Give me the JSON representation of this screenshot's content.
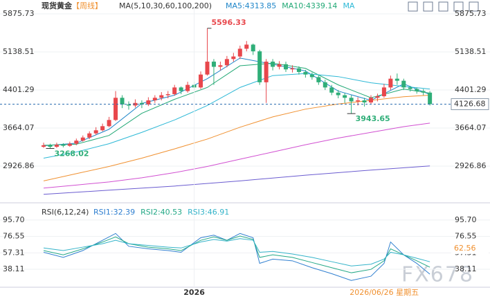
{
  "chart_data": [
    {
      "type": "candlestick",
      "title": "现货黄金",
      "period": "【周线】",
      "indicator": "MA(5,10,30,60,100,200)",
      "open": [
        3300,
        3330,
        3300,
        3340,
        3320,
        3360,
        3420,
        3480,
        3560,
        3620,
        3700,
        3820,
        4250,
        4120,
        4100,
        4150,
        4120,
        4200,
        4250,
        4300,
        4320,
        4450,
        4380,
        4500,
        4450,
        4700,
        4950,
        4850,
        4880,
        5000,
        5050,
        5200,
        5280,
        5150,
        4550,
        4950,
        4850,
        4900,
        4800,
        4820,
        4750,
        4700,
        4650,
        4550,
        4450,
        4350,
        4300,
        4250,
        4180,
        4200,
        4160,
        4250,
        4280,
        4450,
        4620,
        4580,
        4450,
        4420,
        4380,
        4350
      ],
      "high": [
        3380,
        3360,
        3380,
        3370,
        3400,
        3460,
        3520,
        3600,
        3680,
        3750,
        3880,
        4380,
        4300,
        4180,
        4220,
        4200,
        4260,
        4300,
        4360,
        4380,
        4500,
        4470,
        4560,
        4560,
        4760,
        5596.33,
        5000,
        4950,
        5060,
        5120,
        5260,
        5350,
        5300,
        5180,
        5000,
        5000,
        4960,
        4950,
        4880,
        4860,
        4790,
        4740,
        4690,
        4600,
        4500,
        4400,
        4340,
        4300,
        4260,
        4250,
        4300,
        4330,
        4520,
        4680,
        4720,
        4620,
        4480,
        4450,
        4420,
        4380
      ],
      "low": [
        3280,
        3268.02,
        3280,
        3290,
        3300,
        3330,
        3400,
        3450,
        3530,
        3600,
        3680,
        3800,
        4050,
        4020,
        4060,
        4050,
        4090,
        4150,
        4200,
        4240,
        4290,
        4320,
        4350,
        4400,
        4420,
        4680,
        4500,
        4780,
        4840,
        4950,
        5000,
        5150,
        5080,
        4500,
        4150,
        4780,
        4800,
        4750,
        4740,
        4700,
        4640,
        4600,
        4500,
        4400,
        4300,
        4240,
        4150,
        3943.65,
        4100,
        4080,
        4120,
        4180,
        4250,
        4400,
        4500,
        4400,
        4370,
        4330,
        4300,
        4100
      ],
      "close": [
        3330,
        3300,
        3340,
        3320,
        3360,
        3420,
        3480,
        3560,
        3620,
        3700,
        3820,
        4250,
        4120,
        4100,
        4150,
        4120,
        4200,
        4250,
        4300,
        4320,
        4450,
        4380,
        4500,
        4450,
        4700,
        4950,
        4850,
        4880,
        5000,
        5050,
        5200,
        5280,
        5150,
        4550,
        4950,
        4850,
        4900,
        4800,
        4820,
        4750,
        4700,
        4650,
        4550,
        4450,
        4350,
        4300,
        4250,
        4180,
        4200,
        4160,
        4250,
        4280,
        4450,
        4620,
        4580,
        4450,
        4420,
        4380,
        4350,
        4126.68
      ],
      "up_color": "#e8474c",
      "down_color": "#2fae78",
      "series": [
        {
          "name": "MA5:4313.85",
          "color": "#1f86c9",
          "x": [
            0,
            5,
            10,
            15,
            20,
            25,
            30,
            35,
            40,
            45,
            50,
            55,
            59
          ],
          "values": [
            3320,
            3370,
            3640,
            4140,
            4300,
            4620,
            5020,
            4900,
            4770,
            4380,
            4200,
            4520,
            4313.85
          ]
        },
        {
          "name": "MA10:4339.14",
          "color": "#21a875",
          "x": [
            0,
            5,
            10,
            15,
            20,
            25,
            30,
            35,
            40,
            45,
            50,
            55,
            59
          ],
          "values": [
            3330,
            3350,
            3520,
            3950,
            4220,
            4450,
            4870,
            4920,
            4820,
            4500,
            4250,
            4420,
            4339.14
          ]
        },
        {
          "name": "MA",
          "color": "#2cb8d6",
          "x": [
            0,
            5,
            10,
            15,
            20,
            25,
            30,
            35,
            40,
            45,
            50,
            55,
            59
          ],
          "values": [
            3080,
            3200,
            3360,
            3580,
            3820,
            4100,
            4450,
            4680,
            4720,
            4660,
            4540,
            4470,
            4420
          ]
        },
        {
          "color": "#f0902f",
          "x": [
            0,
            5,
            10,
            15,
            20,
            25,
            30,
            35,
            40,
            45,
            50,
            55,
            59
          ],
          "values": [
            2640,
            2780,
            2920,
            3080,
            3260,
            3450,
            3680,
            3880,
            4030,
            4130,
            4200,
            4270,
            4300
          ]
        },
        {
          "color": "#d14fd1",
          "x": [
            0,
            5,
            10,
            15,
            20,
            25,
            30,
            35,
            40,
            45,
            50,
            55,
            59
          ],
          "values": [
            2500,
            2560,
            2620,
            2700,
            2800,
            2920,
            3060,
            3200,
            3340,
            3470,
            3580,
            3690,
            3760
          ]
        },
        {
          "color": "#6a5bd0",
          "x": [
            0,
            10,
            20,
            30,
            40,
            50,
            59
          ],
          "values": [
            2380,
            2460,
            2540,
            2640,
            2750,
            2850,
            2930
          ]
        }
      ],
      "ylim": [
        2256,
        6010
      ],
      "yticks": [
        2926.86,
        3664.07,
        4401.29,
        5138.51,
        5875.73
      ],
      "last_price": 4126.68,
      "annotations": [
        {
          "text": "5596.33",
          "index": 25,
          "value": 5596.33
        },
        {
          "text": "3268.02",
          "index": 1,
          "value": 3268.02
        },
        {
          "text": "3943.65",
          "index": 47,
          "value": 3943.65
        }
      ],
      "xlabels": [
        {
          "index": 23,
          "label": "2026"
        }
      ],
      "cursor": {
        "index": 59,
        "label": "2026/06/26 星期五"
      }
    },
    {
      "type": "line",
      "indicator": "RSI(6,12,24)",
      "series": [
        {
          "name": "RSI1:32.39",
          "color": "#2f7fd0",
          "x": [
            0,
            3,
            6,
            9,
            11,
            13,
            16,
            19,
            21,
            24,
            26,
            28,
            30,
            32,
            33,
            35,
            38,
            41,
            44,
            47,
            50,
            52,
            53,
            55,
            57,
            59
          ],
          "values": [
            58,
            52,
            60,
            72,
            80,
            65,
            62,
            60,
            58,
            75,
            78,
            72,
            80,
            75,
            45,
            50,
            48,
            40,
            33,
            25,
            30,
            45,
            70,
            55,
            45,
            32.39
          ]
        },
        {
          "name": "RSI2:40.53",
          "color": "#23a886",
          "x": [
            0,
            3,
            6,
            9,
            11,
            13,
            16,
            19,
            21,
            24,
            26,
            28,
            30,
            32,
            33,
            35,
            38,
            41,
            44,
            47,
            50,
            52,
            53,
            55,
            57,
            59
          ],
          "values": [
            60,
            55,
            62,
            70,
            76,
            68,
            64,
            62,
            60,
            72,
            76,
            72,
            77,
            73,
            52,
            55,
            52,
            46,
            40,
            34,
            38,
            48,
            62,
            55,
            48,
            40.53
          ]
        },
        {
          "name": "RSI3:46.91",
          "color": "#33b3c9",
          "x": [
            0,
            3,
            6,
            9,
            11,
            13,
            16,
            19,
            21,
            24,
            26,
            28,
            30,
            32,
            33,
            35,
            38,
            41,
            44,
            47,
            50,
            52,
            53,
            55,
            57,
            59
          ],
          "values": [
            63,
            60,
            64,
            68,
            72,
            68,
            66,
            64,
            63,
            70,
            73,
            71,
            74,
            72,
            58,
            59,
            56,
            52,
            47,
            42,
            44,
            50,
            58,
            55,
            51,
            46.91
          ]
        }
      ],
      "ylim": [
        17.1,
        110.2
      ],
      "yticks": [
        38.11,
        57.31,
        76.55,
        {
          "value": 95.7,
          "label": "95.70"
        }
      ],
      "marker": 62.56
    }
  ],
  "watermark": "FX678"
}
